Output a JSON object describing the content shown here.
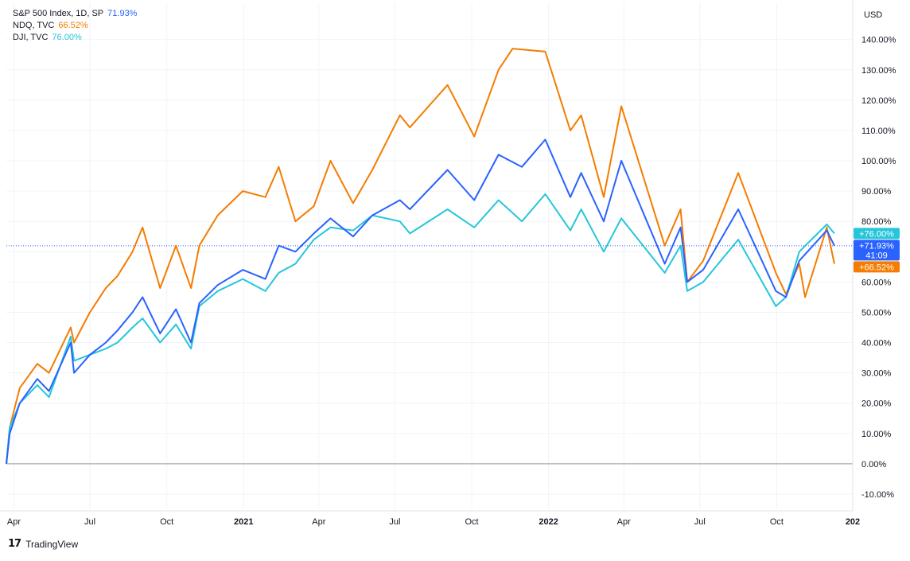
{
  "chart_data": {
    "type": "line",
    "currency_label": "USD",
    "yunit": "%",
    "ylim": [
      -15,
      152
    ],
    "yticks": [
      -10,
      0,
      10,
      20,
      30,
      40,
      50,
      60,
      70,
      80,
      90,
      100,
      110,
      120,
      130,
      140
    ],
    "ytick_labels": [
      "-10.00%",
      "0.00%",
      "10.00%",
      "20.00%",
      "30.00%",
      "40.00%",
      "50.00%",
      "60.00%",
      "70.00%",
      "80.00%",
      "90.00%",
      "100.00%",
      "110.00%",
      "120.00%",
      "130.00%",
      "140.00%"
    ],
    "xlim": [
      "2020-03-23",
      "2022-12-31"
    ],
    "xticks": [
      {
        "date": "2020-04-01",
        "label": "Apr"
      },
      {
        "date": "2020-07-01",
        "label": "Jul"
      },
      {
        "date": "2020-10-01",
        "label": "Oct"
      },
      {
        "date": "2021-01-01",
        "label": "2021"
      },
      {
        "date": "2021-04-01",
        "label": "Apr"
      },
      {
        "date": "2021-07-01",
        "label": "Jul"
      },
      {
        "date": "2021-10-01",
        "label": "Oct"
      },
      {
        "date": "2022-01-01",
        "label": "2022"
      },
      {
        "date": "2022-04-01",
        "label": "Apr"
      },
      {
        "date": "2022-07-01",
        "label": "Jul"
      },
      {
        "date": "2022-10-01",
        "label": "Oct"
      },
      {
        "date": "2022-12-31",
        "label": "202"
      }
    ],
    "grid": true,
    "legend_placement": "top-left",
    "baseline_value": 0,
    "reference_line_value": 71.93,
    "series": [
      {
        "name": "S&P 500 Index, 1D, SP",
        "value_label": "71.93%",
        "badge_label": "+71.93%",
        "badge_sublabel": "41:09",
        "color": "#2962ff",
        "points": [
          [
            "2020-03-23",
            0
          ],
          [
            "2020-03-27",
            10
          ],
          [
            "2020-04-08",
            20
          ],
          [
            "2020-04-29",
            28
          ],
          [
            "2020-05-13",
            24
          ],
          [
            "2020-06-08",
            40
          ],
          [
            "2020-06-12",
            30
          ],
          [
            "2020-07-01",
            36
          ],
          [
            "2020-07-20",
            40
          ],
          [
            "2020-08-03",
            44
          ],
          [
            "2020-08-21",
            50
          ],
          [
            "2020-09-02",
            55
          ],
          [
            "2020-09-23",
            43
          ],
          [
            "2020-10-12",
            51
          ],
          [
            "2020-10-30",
            40
          ],
          [
            "2020-11-09",
            53
          ],
          [
            "2020-12-01",
            59
          ],
          [
            "2020-12-31",
            64
          ],
          [
            "2021-01-27",
            61
          ],
          [
            "2021-02-12",
            72
          ],
          [
            "2021-03-04",
            70
          ],
          [
            "2021-03-26",
            76
          ],
          [
            "2021-04-15",
            81
          ],
          [
            "2021-05-12",
            75
          ],
          [
            "2021-06-04",
            82
          ],
          [
            "2021-07-07",
            87
          ],
          [
            "2021-07-19",
            84
          ],
          [
            "2021-09-02",
            97
          ],
          [
            "2021-10-04",
            87
          ],
          [
            "2021-11-02",
            102
          ],
          [
            "2021-11-30",
            98
          ],
          [
            "2021-12-28",
            107
          ],
          [
            "2022-01-27",
            88
          ],
          [
            "2022-02-09",
            96
          ],
          [
            "2022-03-08",
            80
          ],
          [
            "2022-03-29",
            100
          ],
          [
            "2022-05-20",
            66
          ],
          [
            "2022-06-08",
            78
          ],
          [
            "2022-06-16",
            60
          ],
          [
            "2022-07-05",
            64
          ],
          [
            "2022-08-16",
            84
          ],
          [
            "2022-09-30",
            57
          ],
          [
            "2022-10-12",
            55
          ],
          [
            "2022-10-28",
            67
          ],
          [
            "2022-11-30",
            77
          ],
          [
            "2022-12-09",
            72
          ]
        ]
      },
      {
        "name": "NDQ, TVC",
        "value_label": "66.52%",
        "badge_label": "+66.52%",
        "color": "#f57c00",
        "points": [
          [
            "2020-03-23",
            0
          ],
          [
            "2020-03-27",
            12
          ],
          [
            "2020-04-08",
            25
          ],
          [
            "2020-04-29",
            33
          ],
          [
            "2020-05-13",
            30
          ],
          [
            "2020-06-08",
            45
          ],
          [
            "2020-06-12",
            40
          ],
          [
            "2020-07-01",
            50
          ],
          [
            "2020-07-20",
            58
          ],
          [
            "2020-08-03",
            62
          ],
          [
            "2020-08-21",
            70
          ],
          [
            "2020-09-02",
            78
          ],
          [
            "2020-09-23",
            58
          ],
          [
            "2020-10-12",
            72
          ],
          [
            "2020-10-30",
            58
          ],
          [
            "2020-11-09",
            72
          ],
          [
            "2020-12-01",
            82
          ],
          [
            "2020-12-31",
            90
          ],
          [
            "2021-01-27",
            88
          ],
          [
            "2021-02-12",
            98
          ],
          [
            "2021-03-04",
            80
          ],
          [
            "2021-03-26",
            85
          ],
          [
            "2021-04-15",
            100
          ],
          [
            "2021-05-12",
            86
          ],
          [
            "2021-06-04",
            97
          ],
          [
            "2021-07-07",
            115
          ],
          [
            "2021-07-19",
            111
          ],
          [
            "2021-09-02",
            125
          ],
          [
            "2021-10-04",
            108
          ],
          [
            "2021-11-02",
            130
          ],
          [
            "2021-11-19",
            137
          ],
          [
            "2021-12-28",
            136
          ],
          [
            "2022-01-27",
            110
          ],
          [
            "2022-02-09",
            115
          ],
          [
            "2022-03-08",
            88
          ],
          [
            "2022-03-29",
            118
          ],
          [
            "2022-05-20",
            72
          ],
          [
            "2022-06-08",
            84
          ],
          [
            "2022-06-16",
            60
          ],
          [
            "2022-07-05",
            67
          ],
          [
            "2022-08-16",
            96
          ],
          [
            "2022-09-30",
            63
          ],
          [
            "2022-10-12",
            56
          ],
          [
            "2022-10-28",
            66
          ],
          [
            "2022-11-04",
            55
          ],
          [
            "2022-11-30",
            78
          ],
          [
            "2022-12-09",
            66
          ]
        ]
      },
      {
        "name": "DJI, TVC",
        "value_label": "76.00%",
        "badge_label": "+76.00%",
        "color": "#26c6da",
        "points": [
          [
            "2020-03-23",
            0
          ],
          [
            "2020-03-27",
            12
          ],
          [
            "2020-04-08",
            20
          ],
          [
            "2020-04-29",
            26
          ],
          [
            "2020-05-13",
            22
          ],
          [
            "2020-06-08",
            42
          ],
          [
            "2020-06-12",
            34
          ],
          [
            "2020-07-01",
            36
          ],
          [
            "2020-07-20",
            38
          ],
          [
            "2020-08-03",
            40
          ],
          [
            "2020-08-21",
            45
          ],
          [
            "2020-09-02",
            48
          ],
          [
            "2020-09-23",
            40
          ],
          [
            "2020-10-12",
            46
          ],
          [
            "2020-10-30",
            38
          ],
          [
            "2020-11-09",
            52
          ],
          [
            "2020-12-01",
            57
          ],
          [
            "2020-12-31",
            61
          ],
          [
            "2021-01-27",
            57
          ],
          [
            "2021-02-12",
            63
          ],
          [
            "2021-03-04",
            66
          ],
          [
            "2021-03-26",
            74
          ],
          [
            "2021-04-15",
            78
          ],
          [
            "2021-05-12",
            77
          ],
          [
            "2021-06-04",
            82
          ],
          [
            "2021-07-07",
            80
          ],
          [
            "2021-07-19",
            76
          ],
          [
            "2021-09-02",
            84
          ],
          [
            "2021-10-04",
            78
          ],
          [
            "2021-11-02",
            87
          ],
          [
            "2021-11-30",
            80
          ],
          [
            "2021-12-28",
            89
          ],
          [
            "2022-01-27",
            77
          ],
          [
            "2022-02-09",
            84
          ],
          [
            "2022-03-08",
            70
          ],
          [
            "2022-03-29",
            81
          ],
          [
            "2022-05-20",
            63
          ],
          [
            "2022-06-08",
            72
          ],
          [
            "2022-06-16",
            57
          ],
          [
            "2022-07-05",
            60
          ],
          [
            "2022-08-16",
            74
          ],
          [
            "2022-09-30",
            52
          ],
          [
            "2022-10-12",
            55
          ],
          [
            "2022-10-28",
            70
          ],
          [
            "2022-11-30",
            79
          ],
          [
            "2022-12-09",
            76
          ]
        ]
      }
    ]
  },
  "footer": {
    "logo_glyph": "17",
    "brand": "TradingView"
  }
}
